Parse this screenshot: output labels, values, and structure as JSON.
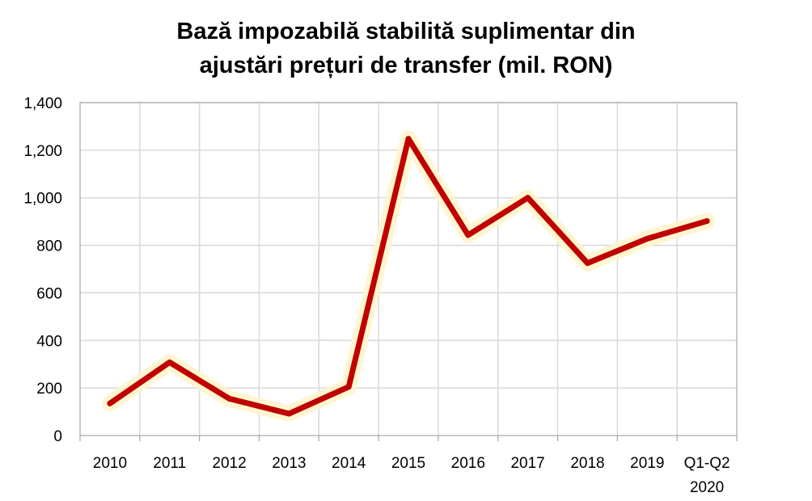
{
  "chart_data": {
    "type": "line",
    "title_lines": [
      "Bază impozabilă stabilită suplimentar din",
      "ajustări prețuri de transfer (mil. RON)"
    ],
    "categories": [
      [
        "2010"
      ],
      [
        "2011"
      ],
      [
        "2012"
      ],
      [
        "2013"
      ],
      [
        "2014"
      ],
      [
        "2015"
      ],
      [
        "2016"
      ],
      [
        "2017"
      ],
      [
        "2018"
      ],
      [
        "2019"
      ],
      [
        "Q1-Q2",
        "2020"
      ]
    ],
    "series": [
      {
        "values": [
          135,
          308,
          155,
          92,
          205,
          1248,
          843,
          1000,
          725,
          828,
          902
        ]
      }
    ],
    "y_ticks": [
      "0",
      "200",
      "400",
      "600",
      "800",
      "1,000",
      "1,200",
      "1,400"
    ],
    "ylim": [
      0,
      1400
    ],
    "grid": true,
    "line_color": "#c00000",
    "glow_color": "#fff5cc",
    "grid_color": "#d9d9d9",
    "axis_color": "#a6a6a6"
  }
}
